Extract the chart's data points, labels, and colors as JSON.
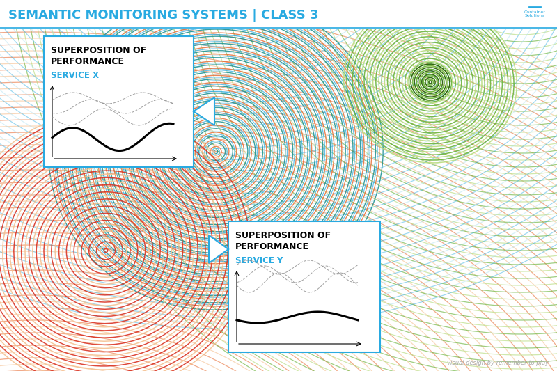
{
  "title": "SEMANTIC MONITORING SYSTEMS | CLASS 3",
  "title_color": "#29aae1",
  "bg_color": "#ffffff",
  "fig_width": 8.0,
  "fig_height": 5.33,
  "dpi": 100,
  "box1_title1": "SUPERPOSITION OF",
  "box1_title2": "PERFORMANCE",
  "box1_subtitle": "SERVICE X",
  "box2_title1": "SUPERPOSITION OF",
  "box2_title2": "PERFORMANCE",
  "box2_subtitle": "SERVICE Y",
  "footer": "visual design by remember to play",
  "orange_color": "#e8713a",
  "orange_light": "#f5c090",
  "blue_color": "#29aae1",
  "blue_light": "#a8dff0",
  "green_color": "#6db43e",
  "green_light": "#b8dc80",
  "red_color": "#d93020",
  "red_light": "#f0a080",
  "teal_color": "#1a8f8f",
  "teal_light": "#70c8c8",
  "yellow_green": "#c8d840",
  "yellow_light": "#e8f080"
}
